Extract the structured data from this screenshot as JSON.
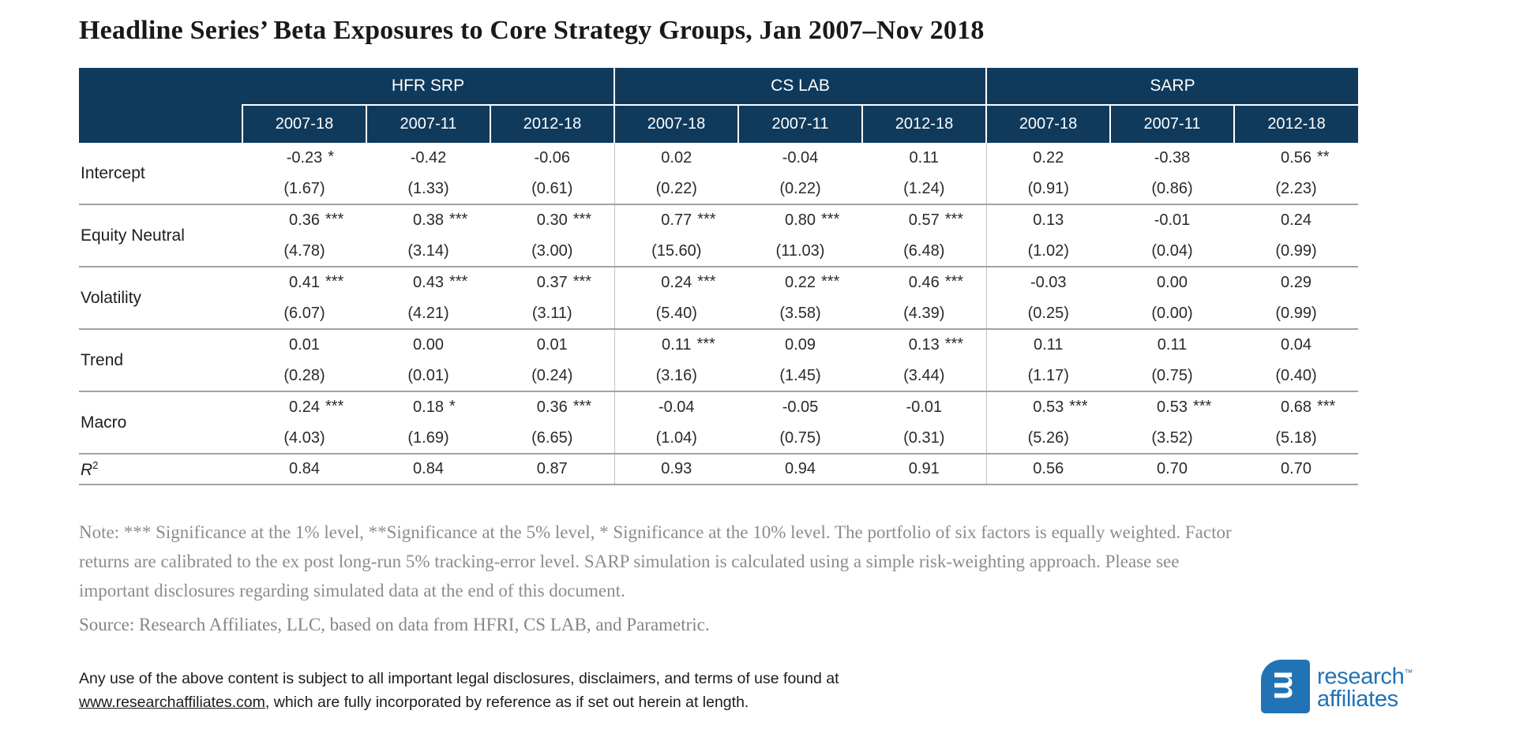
{
  "title": "Headline Series’ Beta Exposures to Core Strategy Groups, Jan 2007–Nov 2018",
  "colors": {
    "header_navy": "#103a5c",
    "logo_blue": "#2173b6",
    "note_gray": "#8c8c8c"
  },
  "table": {
    "groups": [
      "HFR SRP",
      "CS LAB",
      "SARP"
    ],
    "periods": [
      "2007-18",
      "2007-11",
      "2012-18"
    ],
    "rows": [
      {
        "label": "Intercept",
        "coefs": [
          "-0.23 *",
          "-0.42",
          "-0.06",
          "0.02",
          "-0.04",
          "0.11",
          "0.22",
          "-0.38",
          "0.56 **"
        ],
        "tstats": [
          "(1.67)",
          "(1.33)",
          "(0.61)",
          "(0.22)",
          "(0.22)",
          "(1.24)",
          "(0.91)",
          "(0.86)",
          "(2.23)"
        ]
      },
      {
        "label": "Equity Neutral",
        "coefs": [
          "0.36 ***",
          "0.38 ***",
          "0.30 ***",
          "0.77 ***",
          "0.80 ***",
          "0.57 ***",
          "0.13",
          "-0.01",
          "0.24"
        ],
        "tstats": [
          "(4.78)",
          "(3.14)",
          "(3.00)",
          "(15.60)",
          "(11.03)",
          "(6.48)",
          "(1.02)",
          "(0.04)",
          "(0.99)"
        ]
      },
      {
        "label": "Volatility",
        "coefs": [
          "0.41 ***",
          "0.43 ***",
          "0.37 ***",
          "0.24 ***",
          "0.22 ***",
          "0.46 ***",
          "-0.03",
          "0.00",
          "0.29"
        ],
        "tstats": [
          "(6.07)",
          "(4.21)",
          "(3.11)",
          "(5.40)",
          "(3.58)",
          "(4.39)",
          "(0.25)",
          "(0.00)",
          "(0.99)"
        ]
      },
      {
        "label": "Trend",
        "coefs": [
          "0.01",
          "0.00",
          "0.01",
          "0.11 ***",
          "0.09",
          "0.13 ***",
          "0.11",
          "0.11",
          "0.04"
        ],
        "tstats": [
          "(0.28)",
          "(0.01)",
          "(0.24)",
          "(3.16)",
          "(1.45)",
          "(3.44)",
          "(1.17)",
          "(0.75)",
          "(0.40)"
        ]
      },
      {
        "label": "Macro",
        "coefs": [
          "0.24 ***",
          "0.18 *",
          "0.36 ***",
          "-0.04",
          "-0.05",
          "-0.01",
          "0.53 ***",
          "0.53 ***",
          "0.68 ***"
        ],
        "tstats": [
          "(4.03)",
          "(1.69)",
          "(6.65)",
          "(1.04)",
          "(0.75)",
          "(0.31)",
          "(5.26)",
          "(3.52)",
          "(5.18)"
        ]
      }
    ],
    "r2": {
      "label_base": "R",
      "label_sup": "2",
      "values": [
        "0.84",
        "0.84",
        "0.87",
        "0.93",
        "0.94",
        "0.91",
        "0.56",
        "0.70",
        "0.70"
      ]
    }
  },
  "notes": {
    "lines": [
      "Note: *** Significance at the 1% level, **Significance at the 5% level, * Significance at the 10% level. The portfolio of six factors is equally weighted. Factor",
      "returns are calibrated  to the ex post long-run 5% tracking-error level. SARP simulation is calculated using a simple risk-weighting approach. Please see",
      "important disclosures regarding simulated data at the end of this document."
    ],
    "source": "Source: Research Affiliates, LLC, based on data from HFRI, CS LAB, and Parametric."
  },
  "legal": {
    "line1": "Any use of the above content is subject to all important legal disclosures, disclaimers, and terms of use found at",
    "link": "www.researchaffiliates.com",
    "after_link": ", which are fully incorporated by reference as if set out herein at length."
  },
  "logo": {
    "brand_line1": "research",
    "brand_line2": "affiliates",
    "trademark": "™",
    "monogram": "m"
  }
}
